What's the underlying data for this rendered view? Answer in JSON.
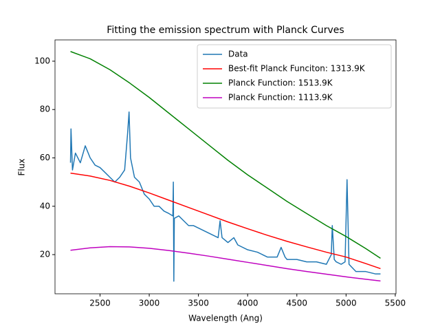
{
  "chart_data": {
    "type": "line",
    "title": "Fitting the emission spectrum with Planck Curves",
    "xlabel": "Wavelength (Ang)",
    "ylabel": "Flux",
    "xlim": [
      2042.5,
      5507.5
    ],
    "ylim": [
      3.8,
      108.8
    ],
    "xticks": [
      2500,
      3000,
      3500,
      4000,
      4500,
      5000,
      5500
    ],
    "yticks": [
      20,
      40,
      60,
      80,
      100
    ],
    "legend": "upper right",
    "series": [
      {
        "name": "Data",
        "color": "#1f77b4",
        "x": [
          2200,
          2205,
          2220,
          2250,
          2300,
          2350,
          2400,
          2450,
          2500,
          2550,
          2600,
          2650,
          2700,
          2750,
          2780,
          2795,
          2810,
          2850,
          2900,
          2950,
          3000,
          3050,
          3100,
          3150,
          3200,
          3240,
          3245,
          3250,
          3255,
          3300,
          3350,
          3400,
          3450,
          3500,
          3600,
          3700,
          3720,
          3740,
          3800,
          3860,
          3900,
          4000,
          4100,
          4200,
          4300,
          4340,
          4380,
          4400,
          4500,
          4600,
          4700,
          4800,
          4850,
          4860,
          4880,
          4900,
          4950,
          4990,
          5010,
          5030,
          5100,
          5200,
          5300,
          5350
        ],
        "values": [
          58,
          72,
          55,
          62,
          58,
          65,
          60,
          57,
          56,
          54,
          52,
          50,
          52,
          55,
          70,
          79,
          60,
          52,
          50,
          45,
          43,
          40,
          40,
          38,
          37,
          36,
          50,
          9,
          35,
          36,
          34,
          32,
          32,
          31,
          29,
          27,
          34,
          27,
          25,
          27,
          24,
          22,
          21,
          19,
          19,
          23,
          19,
          18,
          18,
          17,
          17,
          16,
          20,
          32,
          18,
          17,
          16,
          17,
          51,
          16,
          13,
          13,
          12,
          12
        ]
      },
      {
        "name": "Best-fit Planck Funciton: 1313.9K",
        "color": "#ff0000",
        "x": [
          2200,
          2400,
          2600,
          2800,
          3000,
          3200,
          3400,
          3600,
          3800,
          4000,
          4200,
          4400,
          4600,
          4800,
          5000,
          5200,
          5350
        ],
        "values": [
          53.7,
          52.5,
          50.7,
          48.3,
          45.5,
          42.5,
          39.5,
          36.5,
          33.5,
          30.7,
          28,
          25.5,
          23.2,
          21,
          19,
          16.3,
          14.2
        ]
      },
      {
        "name": "Planck Function: 1513.9K",
        "color": "#008000",
        "x": [
          2200,
          2400,
          2600,
          2800,
          3000,
          3200,
          3400,
          3600,
          3800,
          4000,
          4200,
          4400,
          4600,
          4800,
          5000,
          5200,
          5350
        ],
        "values": [
          104,
          101,
          96.5,
          91,
          85,
          78.5,
          72,
          65.5,
          59,
          53,
          47.5,
          42,
          37,
          32,
          27.5,
          22.5,
          18.5
        ]
      },
      {
        "name": "Planck Function: 1113.9K",
        "color": "#bf00bf",
        "x": [
          2200,
          2400,
          2600,
          2800,
          3000,
          3200,
          3400,
          3600,
          3800,
          4000,
          4200,
          4400,
          4600,
          4800,
          5000,
          5200,
          5350
        ],
        "values": [
          21.8,
          22.8,
          23.3,
          23.2,
          22.6,
          21.7,
          20.6,
          19.4,
          18.1,
          16.8,
          15.5,
          14.2,
          13,
          11.9,
          10.8,
          9.8,
          9.1
        ]
      }
    ]
  }
}
